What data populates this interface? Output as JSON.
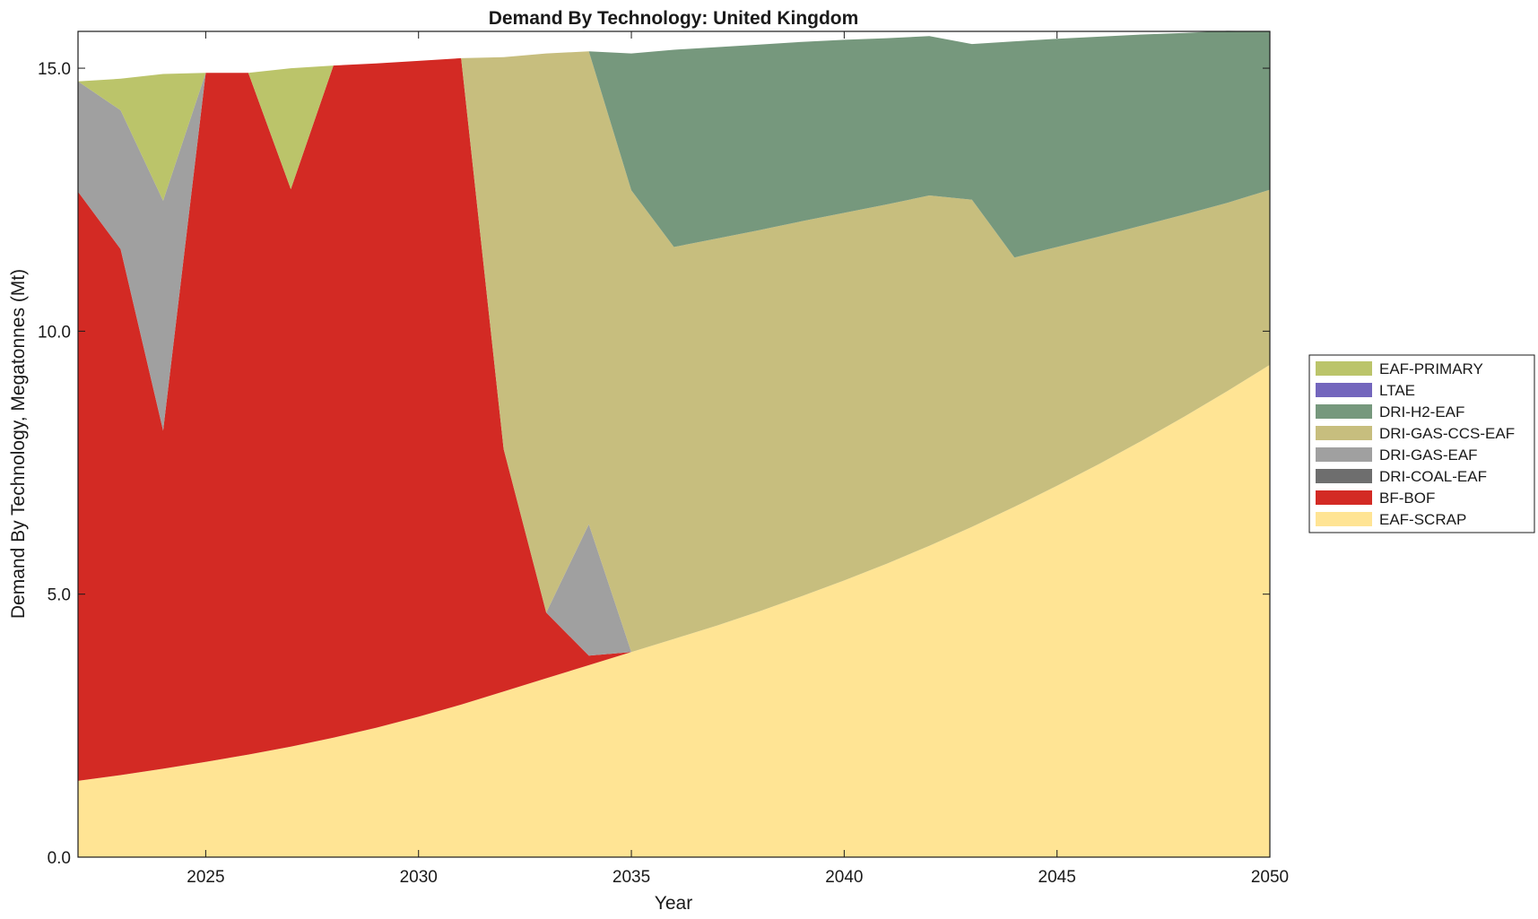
{
  "chart_data": {
    "type": "area",
    "stacked": true,
    "title": "Demand By Technology: United Kingdom",
    "xlabel": "Year",
    "ylabel": "Demand By Technology, Megatonnes (Mt)",
    "xlim": [
      2022,
      2050
    ],
    "ylim": [
      0,
      15.7
    ],
    "xticks": [
      2025,
      2030,
      2035,
      2040,
      2045,
      2050
    ],
    "xtick_labels": [
      "2025",
      "2030",
      "2035",
      "2040",
      "2045",
      "2050"
    ],
    "yticks": [
      0,
      5,
      10,
      15
    ],
    "ytick_labels": [
      "0.0",
      "5.0",
      "10.0",
      "15.0"
    ],
    "grid": false,
    "legend_position": "right",
    "x": [
      2022,
      2023,
      2024,
      2025,
      2026,
      2027,
      2028,
      2029,
      2030,
      2031,
      2032,
      2033,
      2034,
      2035,
      2036,
      2037,
      2038,
      2039,
      2040,
      2041,
      2042,
      2043,
      2044,
      2045,
      2046,
      2047,
      2048,
      2049,
      2050
    ],
    "series": [
      {
        "name": "EAF-SCRAP",
        "color": "#ffe494",
        "values": [
          1.45,
          1.56,
          1.68,
          1.81,
          1.95,
          2.1,
          2.27,
          2.46,
          2.67,
          2.9,
          3.15,
          3.4,
          3.65,
          3.9,
          4.15,
          4.4,
          4.67,
          4.96,
          5.26,
          5.58,
          5.92,
          6.28,
          6.66,
          7.06,
          7.48,
          7.92,
          8.38,
          8.86,
          9.36
        ]
      },
      {
        "name": "BF-BOF",
        "color": "#d32a24",
        "values": [
          11.2,
          10.0,
          6.43,
          13.1,
          12.96,
          10.6,
          12.78,
          12.63,
          12.47,
          12.29,
          4.61,
          1.25,
          0.18,
          0,
          0,
          0,
          0,
          0,
          0,
          0,
          0,
          0,
          0,
          0,
          0,
          0,
          0,
          0,
          0
        ]
      },
      {
        "name": "DRI-COAL-EAF",
        "color": "#6e6e6e",
        "values": [
          0,
          0,
          0,
          0,
          0,
          0,
          0,
          0,
          0,
          0,
          0,
          0,
          0,
          0,
          0,
          0,
          0,
          0,
          0,
          0,
          0,
          0,
          0,
          0,
          0,
          0,
          0,
          0,
          0
        ]
      },
      {
        "name": "DRI-GAS-EAF",
        "color": "#a0a0a0",
        "values": [
          2.1,
          2.64,
          4.37,
          0,
          0,
          0,
          0,
          0,
          0,
          0,
          0,
          0,
          2.5,
          0,
          0,
          0,
          0,
          0,
          0,
          0,
          0,
          0,
          0,
          0,
          0,
          0,
          0,
          0,
          0
        ]
      },
      {
        "name": "DRI-GAS-CCS-EAF",
        "color": "#c7be7e",
        "values": [
          0,
          0,
          0,
          0,
          0,
          0,
          0,
          0,
          0,
          0,
          7.45,
          10.63,
          8.99,
          8.78,
          7.45,
          7.36,
          7.25,
          7.13,
          6.99,
          6.83,
          6.66,
          6.22,
          4.74,
          4.54,
          4.32,
          4.09,
          3.84,
          3.58,
          3.33
        ]
      },
      {
        "name": "DRI-H2-EAF",
        "color": "#76987d",
        "values": [
          0,
          0,
          0,
          0,
          0,
          0,
          0,
          0,
          0,
          0,
          0,
          0,
          0,
          2.6,
          3.75,
          3.64,
          3.53,
          3.41,
          3.29,
          3.16,
          3.03,
          2.96,
          4.11,
          3.96,
          3.8,
          3.63,
          3.45,
          3.27,
          3.01
        ]
      },
      {
        "name": "LTAE",
        "color": "#7366bd",
        "values": [
          0,
          0,
          0,
          0,
          0,
          0,
          0,
          0,
          0,
          0,
          0,
          0,
          0,
          0,
          0,
          0,
          0,
          0,
          0,
          0,
          0,
          0,
          0,
          0,
          0,
          0,
          0,
          0,
          0
        ]
      },
      {
        "name": "EAF-PRIMARY",
        "color": "#bbc46a",
        "values": [
          0,
          0.6,
          2.41,
          0,
          0,
          2.3,
          0,
          0,
          0,
          0,
          0,
          0,
          0,
          0,
          0,
          0,
          0,
          0,
          0,
          0,
          0,
          0,
          0,
          0,
          0,
          0,
          0,
          0,
          0
        ]
      }
    ],
    "legend_order": [
      "EAF-PRIMARY",
      "LTAE",
      "DRI-H2-EAF",
      "DRI-GAS-CCS-EAF",
      "DRI-GAS-EAF",
      "DRI-COAL-EAF",
      "BF-BOF",
      "EAF-SCRAP"
    ]
  }
}
